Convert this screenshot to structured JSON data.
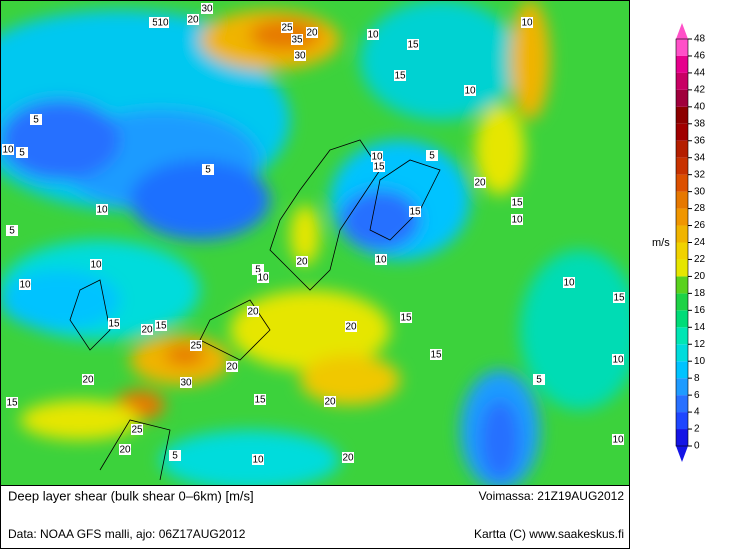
{
  "title": "Deep layer shear (bulk shear 0–6km) [m/s]",
  "valid": "Voimassa: 21Z19AUG2012",
  "source": "Data: NOAA GFS malli, ajo: 06Z17AUG2012",
  "credit": "Kartta (C) www.saakeskus.fi",
  "colorbar": {
    "unit": "m/s",
    "levels": [
      0,
      2,
      4,
      6,
      8,
      10,
      12,
      14,
      16,
      18,
      20,
      22,
      24,
      26,
      28,
      30,
      32,
      34,
      36,
      38,
      40,
      42,
      44,
      46,
      48
    ],
    "colors": [
      "#1414e6",
      "#1e46ff",
      "#2870ff",
      "#1e9bff",
      "#00c3ff",
      "#00dcdc",
      "#00e6b4",
      "#00dc78",
      "#1ed246",
      "#5ad21e",
      "#e6e600",
      "#f0d200",
      "#f0b400",
      "#f09600",
      "#e67800",
      "#dc5000",
      "#c83200",
      "#b41e00",
      "#a00000",
      "#8c0000",
      "#a0003c",
      "#c80064",
      "#e6008c",
      "#ff50c8"
    ],
    "below_color": "#1414e6",
    "above_color": "#ff50c8"
  },
  "contour_labels": [
    5,
    10,
    20,
    30,
    25,
    35,
    20,
    30,
    10,
    15,
    15,
    10,
    10,
    5,
    10,
    5,
    5,
    10,
    15,
    5,
    20,
    10,
    15,
    15,
    10,
    5,
    5,
    10,
    20,
    10,
    10,
    10,
    20,
    15,
    20,
    15,
    20,
    15,
    10,
    15,
    25,
    15,
    20,
    30,
    20,
    5,
    15,
    15,
    20,
    25,
    20,
    5,
    10,
    20,
    10,
    10
  ]
}
